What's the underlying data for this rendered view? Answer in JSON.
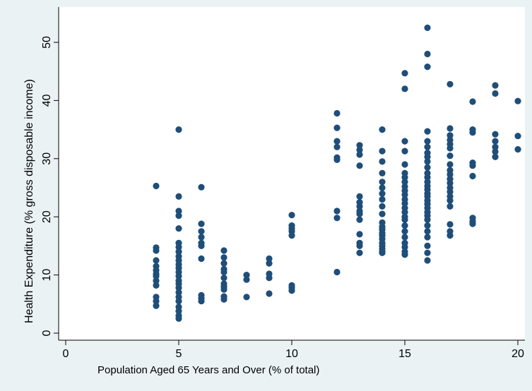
{
  "chart_data": {
    "type": "scatter",
    "xlabel": "Population Aged 65 Years and Over (% of total)",
    "ylabel": "Health Expenditure (% gross disposable income)",
    "xlim": [
      0,
      20
    ],
    "ylim": [
      0,
      55
    ],
    "x_ticks": [
      0,
      5,
      10,
      15,
      20
    ],
    "y_ticks": [
      0,
      10,
      20,
      30,
      40,
      50
    ],
    "grid": false,
    "legend": "none",
    "colors": {
      "marker": "#1f4e79",
      "plot_background": "#ffffff",
      "outer_background": "#eaf2f3"
    },
    "points": [
      [
        4,
        25.3
      ],
      [
        4,
        14.7
      ],
      [
        4,
        14.2
      ],
      [
        4,
        12.5
      ],
      [
        4,
        11.5
      ],
      [
        4,
        10.8
      ],
      [
        4,
        10.2
      ],
      [
        4,
        9.8
      ],
      [
        4,
        9.0
      ],
      [
        4,
        8.2
      ],
      [
        4,
        6.2
      ],
      [
        4,
        5.5
      ],
      [
        4,
        4.7
      ],
      [
        5,
        35.0
      ],
      [
        5,
        23.5
      ],
      [
        5,
        21.0
      ],
      [
        5,
        20.2
      ],
      [
        5,
        18.0
      ],
      [
        5,
        15.5
      ],
      [
        5,
        14.8
      ],
      [
        5,
        14.0
      ],
      [
        5,
        13.2
      ],
      [
        5,
        12.5
      ],
      [
        5,
        11.8
      ],
      [
        5,
        11.2
      ],
      [
        5,
        10.5
      ],
      [
        5,
        9.8
      ],
      [
        5,
        9.0
      ],
      [
        5,
        8.5
      ],
      [
        5,
        7.8
      ],
      [
        5,
        7.0
      ],
      [
        5,
        6.2
      ],
      [
        5,
        5.5
      ],
      [
        5,
        4.5
      ],
      [
        5,
        3.8
      ],
      [
        5,
        3.0
      ],
      [
        5,
        2.5
      ],
      [
        6,
        25.1
      ],
      [
        6,
        18.8
      ],
      [
        6,
        17.5
      ],
      [
        6,
        16.5
      ],
      [
        6,
        15.5
      ],
      [
        6,
        15.0
      ],
      [
        6,
        12.8
      ],
      [
        6,
        6.5
      ],
      [
        6,
        6.0
      ],
      [
        6,
        5.5
      ],
      [
        7,
        14.2
      ],
      [
        7,
        13.0
      ],
      [
        7,
        12.0
      ],
      [
        7,
        11.0
      ],
      [
        7,
        10.5
      ],
      [
        7,
        9.5
      ],
      [
        7,
        8.5
      ],
      [
        7,
        8.0
      ],
      [
        7,
        7.5
      ],
      [
        7,
        6.3
      ],
      [
        7,
        5.8
      ],
      [
        8,
        10.0
      ],
      [
        8,
        9.2
      ],
      [
        8,
        6.2
      ],
      [
        9,
        12.8
      ],
      [
        9,
        12.0
      ],
      [
        9,
        10.2
      ],
      [
        9,
        9.5
      ],
      [
        9,
        6.8
      ],
      [
        10,
        20.3
      ],
      [
        10,
        18.5
      ],
      [
        10,
        18.0
      ],
      [
        10,
        17.5
      ],
      [
        10,
        16.8
      ],
      [
        10,
        8.2
      ],
      [
        10,
        7.8
      ],
      [
        10,
        7.3
      ],
      [
        12,
        37.8
      ],
      [
        12,
        35.3
      ],
      [
        12,
        33.0
      ],
      [
        12,
        32.0
      ],
      [
        12,
        30.2
      ],
      [
        12,
        29.8
      ],
      [
        12,
        21.0
      ],
      [
        12,
        19.8
      ],
      [
        12,
        10.5
      ],
      [
        13,
        32.3
      ],
      [
        13,
        31.5
      ],
      [
        13,
        30.7
      ],
      [
        13,
        28.8
      ],
      [
        13,
        23.5
      ],
      [
        13,
        22.5
      ],
      [
        13,
        21.8
      ],
      [
        13,
        21.0
      ],
      [
        13,
        20.5
      ],
      [
        13,
        19.5
      ],
      [
        13,
        17.0
      ],
      [
        13,
        15.5
      ],
      [
        13,
        15.0
      ],
      [
        13,
        13.8
      ],
      [
        14,
        35.0
      ],
      [
        14,
        31.3
      ],
      [
        14,
        29.5
      ],
      [
        14,
        27.5
      ],
      [
        14,
        26.0
      ],
      [
        14,
        25.0
      ],
      [
        14,
        24.0
      ],
      [
        14,
        23.0
      ],
      [
        14,
        21.8
      ],
      [
        14,
        20.5
      ],
      [
        14,
        19.0
      ],
      [
        14,
        18.3
      ],
      [
        14,
        17.8
      ],
      [
        14,
        17.2
      ],
      [
        14,
        16.8
      ],
      [
        14,
        16.2
      ],
      [
        14,
        15.5
      ],
      [
        14,
        15.0
      ],
      [
        14,
        14.5
      ],
      [
        14,
        14.0
      ],
      [
        14,
        13.8
      ],
      [
        15,
        44.7
      ],
      [
        15,
        42.0
      ],
      [
        15,
        33.0
      ],
      [
        15,
        31.3
      ],
      [
        15,
        29.0
      ],
      [
        15,
        27.5
      ],
      [
        15,
        26.8
      ],
      [
        15,
        26.0
      ],
      [
        15,
        25.2
      ],
      [
        15,
        24.5
      ],
      [
        15,
        23.8
      ],
      [
        15,
        23.0
      ],
      [
        15,
        22.3
      ],
      [
        15,
        21.5
      ],
      [
        15,
        20.8
      ],
      [
        15,
        20.0
      ],
      [
        15,
        19.5
      ],
      [
        15,
        18.5
      ],
      [
        15,
        17.5
      ],
      [
        15,
        16.5
      ],
      [
        15,
        15.5
      ],
      [
        15,
        14.8
      ],
      [
        15,
        14.0
      ],
      [
        15,
        13.5
      ],
      [
        16,
        52.5
      ],
      [
        16,
        48.0
      ],
      [
        16,
        45.8
      ],
      [
        16,
        34.7
      ],
      [
        16,
        33.0
      ],
      [
        16,
        32.0
      ],
      [
        16,
        31.0
      ],
      [
        16,
        30.3
      ],
      [
        16,
        29.5
      ],
      [
        16,
        28.5
      ],
      [
        16,
        27.5
      ],
      [
        16,
        26.8
      ],
      [
        16,
        26.0
      ],
      [
        16,
        25.3
      ],
      [
        16,
        24.7
      ],
      [
        16,
        24.0
      ],
      [
        16,
        23.5
      ],
      [
        16,
        22.8
      ],
      [
        16,
        22.2
      ],
      [
        16,
        21.5
      ],
      [
        16,
        20.8
      ],
      [
        16,
        20.2
      ],
      [
        16,
        19.5
      ],
      [
        16,
        18.5
      ],
      [
        16,
        17.5
      ],
      [
        16,
        16.5
      ],
      [
        16,
        15.0
      ],
      [
        16,
        13.8
      ],
      [
        16,
        12.5
      ],
      [
        17,
        42.8
      ],
      [
        17,
        35.2
      ],
      [
        17,
        34.0
      ],
      [
        17,
        33.2
      ],
      [
        17,
        32.5
      ],
      [
        17,
        31.8
      ],
      [
        17,
        30.5
      ],
      [
        17,
        29.0
      ],
      [
        17,
        28.0
      ],
      [
        17,
        27.3
      ],
      [
        17,
        26.5
      ],
      [
        17,
        25.8
      ],
      [
        17,
        25.0
      ],
      [
        17,
        24.3
      ],
      [
        17,
        23.5
      ],
      [
        17,
        22.8
      ],
      [
        17,
        21.8
      ],
      [
        17,
        18.7
      ],
      [
        17,
        17.5
      ],
      [
        17,
        16.8
      ],
      [
        18,
        39.8
      ],
      [
        18,
        35.0
      ],
      [
        18,
        34.5
      ],
      [
        18,
        29.3
      ],
      [
        18,
        28.8
      ],
      [
        18,
        27.0
      ],
      [
        18,
        19.8
      ],
      [
        18,
        19.2
      ],
      [
        18,
        18.8
      ],
      [
        19,
        42.6
      ],
      [
        19,
        41.2
      ],
      [
        19,
        34.2
      ],
      [
        19,
        33.0
      ],
      [
        19,
        32.0
      ],
      [
        19,
        31.2
      ],
      [
        19,
        30.3
      ],
      [
        20,
        39.9
      ],
      [
        20,
        33.9
      ],
      [
        20,
        31.6
      ]
    ]
  }
}
